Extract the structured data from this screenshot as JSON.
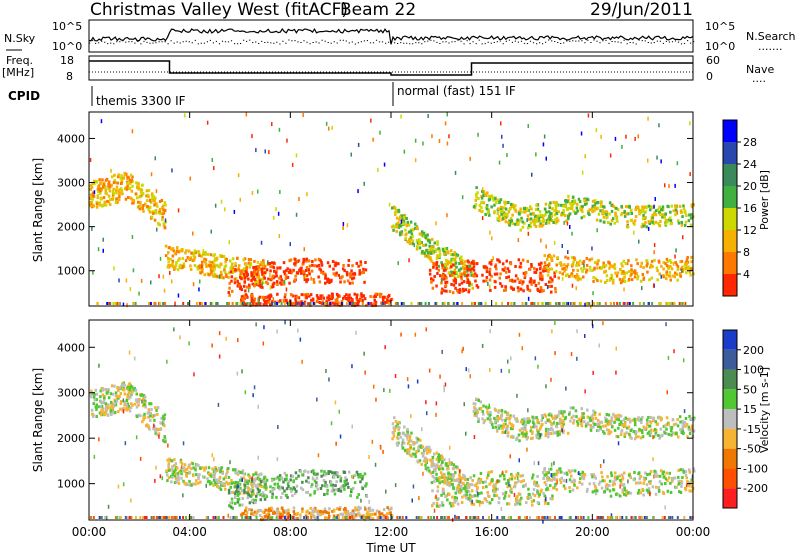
{
  "header": {
    "title": "Christmas Valley West (fitACF)",
    "beam": "Beam 22",
    "date": "29/Jun/2011"
  },
  "top_panel": {
    "left_label": "N.Sky",
    "left_tick_hi": "10^5",
    "left_tick_lo": "10^0",
    "right_tick_hi": "10^5",
    "right_tick_lo": "10^0",
    "right_label": "N.Search",
    "right_dots": "......."
  },
  "freq_panel": {
    "left_label_1": "Freq.",
    "left_label_2": "[MHz]",
    "left_tick_hi": "18",
    "left_tick_lo": "8",
    "right_tick_hi": "60",
    "right_tick_lo": "0",
    "right_label": "Nave",
    "right_dots": "....",
    "freq_steps": [
      {
        "t0": 0.0,
        "t1": 3.2,
        "mhz": 17
      },
      {
        "t0": 3.2,
        "t1": 12.0,
        "mhz": 11
      },
      {
        "t0": 12.0,
        "t1": 15.2,
        "mhz": 10
      },
      {
        "t0": 15.2,
        "t1": 24.0,
        "mhz": 16
      }
    ]
  },
  "cpid": {
    "label": "CPID",
    "mode1": "themis 3300 IF",
    "mode2": "normal (fast) 151 IF"
  },
  "chart_data": [
    {
      "type": "heatmap",
      "name": "Power",
      "ylabel": "Slant Range [km]",
      "xlabel": "Time UT",
      "x_ticks": [
        "00:00",
        "04:00",
        "08:00",
        "12:00",
        "16:00",
        "20:00",
        "00:00"
      ],
      "y_ticks": [
        "1000",
        "2000",
        "3000",
        "4000"
      ],
      "xlim": [
        0,
        24
      ],
      "ylim": [
        200,
        4600
      ],
      "colorbar": {
        "label": "Power [dB]",
        "ticks": [
          "4",
          "8",
          "12",
          "16",
          "20",
          "24",
          "28"
        ],
        "colors": [
          "#0000ff",
          "#2848b0",
          "#3a8a5a",
          "#40b040",
          "#ccd800",
          "#f6b000",
          "#ff7800",
          "#ff2800"
        ]
      },
      "bands": [
        {
          "t": [
            0.0,
            1.5,
            3.0
          ],
          "r": [
            2750,
            2950,
            2250
          ],
          "w": 320,
          "level": 5
        },
        {
          "t": [
            3.0,
            5.0,
            7.0
          ],
          "r": [
            1350,
            1150,
            1000
          ],
          "w": 260,
          "level": 5
        },
        {
          "t": [
            5.5,
            8.5,
            11.0
          ],
          "r": [
            750,
            1050,
            1000
          ],
          "w": 280,
          "level": 7
        },
        {
          "t": [
            6.0,
            9.0,
            12.0
          ],
          "r": [
            350,
            350,
            380
          ],
          "w": 150,
          "level": 7
        },
        {
          "t": [
            12.0,
            13.5,
            15.2
          ],
          "r": [
            2250,
            1500,
            900
          ],
          "w": 280,
          "level": 4
        },
        {
          "t": [
            13.5,
            16.0,
            18.5
          ],
          "r": [
            850,
            950,
            900
          ],
          "w": 360,
          "level": 7
        },
        {
          "t": [
            15.2,
            17.0,
            19.0
          ],
          "r": [
            2700,
            2200,
            2400
          ],
          "w": 260,
          "level": 4
        },
        {
          "t": [
            19.0,
            21.5,
            24.0
          ],
          "r": [
            2500,
            2250,
            2300
          ],
          "w": 240,
          "level": 4
        },
        {
          "t": [
            18.0,
            21.0,
            24.0
          ],
          "r": [
            1150,
            1000,
            1100
          ],
          "w": 260,
          "level": 5
        }
      ]
    },
    {
      "type": "heatmap",
      "name": "Velocity",
      "ylabel": "Slant Range [km]",
      "xlabel": "Time UT",
      "x_ticks": [
        "00:00",
        "04:00",
        "08:00",
        "12:00",
        "16:00",
        "20:00",
        "00:00"
      ],
      "y_ticks": [
        "1000",
        "2000",
        "3000",
        "4000"
      ],
      "xlim": [
        0,
        24
      ],
      "ylim": [
        200,
        4600
      ],
      "colorbar": {
        "label": "Velocity [m s-1]",
        "ticks": [
          "200",
          "100",
          "50",
          "15",
          "-15",
          "-50",
          "-100",
          "-200"
        ],
        "colors": [
          "#1a3cc8",
          "#3c5c9c",
          "#4c8c50",
          "#50c832",
          "#bebebe",
          "#f6b432",
          "#f07800",
          "#ff5000",
          "#ff1e1e"
        ]
      },
      "bands": [
        {
          "t": [
            0.0,
            1.5,
            3.0
          ],
          "r": [
            2750,
            2950,
            2250
          ],
          "w": 320,
          "level": 4
        },
        {
          "t": [
            3.0,
            5.0,
            7.0
          ],
          "r": [
            1350,
            1150,
            1000
          ],
          "w": 260,
          "level": 4
        },
        {
          "t": [
            5.5,
            8.5,
            11.0
          ],
          "r": [
            750,
            1050,
            1000
          ],
          "w": 280,
          "level": 3
        },
        {
          "t": [
            6.0,
            9.0,
            12.0
          ],
          "r": [
            350,
            350,
            380
          ],
          "w": 150,
          "level": 5
        },
        {
          "t": [
            12.0,
            13.5,
            15.2
          ],
          "r": [
            2250,
            1500,
            900
          ],
          "w": 280,
          "level": 4
        },
        {
          "t": [
            13.5,
            16.0,
            18.5
          ],
          "r": [
            850,
            950,
            900
          ],
          "w": 360,
          "level": 4
        },
        {
          "t": [
            15.2,
            17.0,
            19.0
          ],
          "r": [
            2700,
            2200,
            2400
          ],
          "w": 260,
          "level": 4
        },
        {
          "t": [
            19.0,
            21.5,
            24.0
          ],
          "r": [
            2500,
            2250,
            2300
          ],
          "w": 240,
          "level": 4
        },
        {
          "t": [
            18.0,
            21.0,
            24.0
          ],
          "r": [
            1150,
            1000,
            1100
          ],
          "w": 260,
          "level": 4
        }
      ]
    }
  ]
}
